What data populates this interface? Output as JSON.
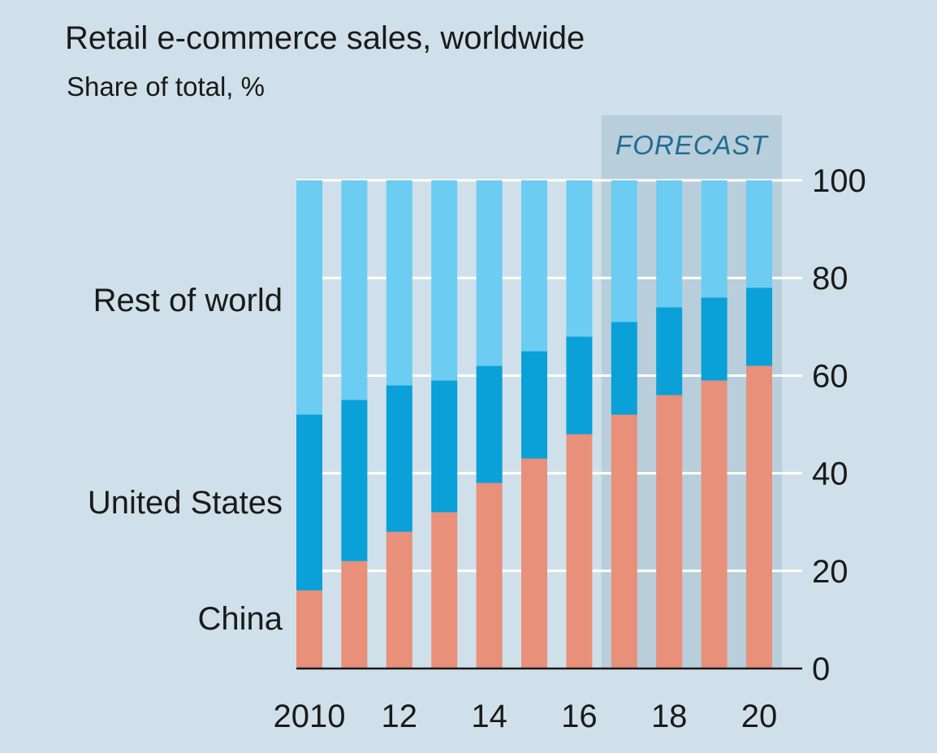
{
  "chart_data": {
    "type": "bar",
    "stacked": true,
    "title": "Retail e-commerce sales, worldwide",
    "subtitle": "Share of total, %",
    "categories": [
      "2010",
      "11",
      "12",
      "13",
      "14",
      "15",
      "16",
      "17",
      "18",
      "19",
      "20"
    ],
    "x_tick_labels": [
      "2010",
      "12",
      "14",
      "16",
      "18",
      "20"
    ],
    "y_tick_labels": [
      "0",
      "20",
      "40",
      "60",
      "80",
      "100"
    ],
    "ylim": [
      0,
      100
    ],
    "y_axis_side": "right",
    "grid": true,
    "series": [
      {
        "name": "China",
        "color": "#e8907a",
        "values": [
          16,
          22,
          28,
          32,
          38,
          43,
          48,
          52,
          56,
          59,
          62
        ]
      },
      {
        "name": "United States",
        "color": "#0aa0d8",
        "values": [
          36,
          33,
          30,
          27,
          24,
          22,
          20,
          19,
          18,
          17,
          16
        ]
      },
      {
        "name": "Rest of world",
        "color": "#6cccf2",
        "values": [
          48,
          45,
          42,
          41,
          38,
          35,
          32,
          29,
          26,
          24,
          22
        ]
      }
    ],
    "forecast": {
      "label": "FORECAST",
      "from_category": "17",
      "to_category": "20",
      "color": "#b9cedb"
    },
    "background_color": "#cfe0ea"
  }
}
